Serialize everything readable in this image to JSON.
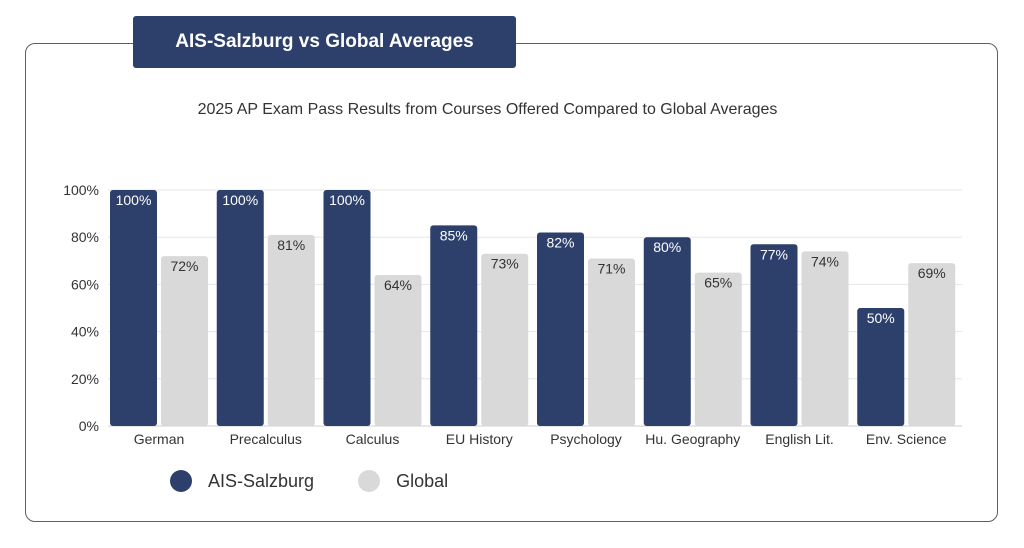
{
  "header": {
    "label": "AIS-Salzburg vs Global Averages"
  },
  "chart_data": {
    "type": "bar",
    "title": "2025 AP Exam Pass Results from Courses Offered Compared to Global Averages",
    "categories": [
      "German",
      "Precalculus",
      "Calculus",
      "EU History",
      "Psychology",
      "Hu. Geography",
      "English Lit.",
      "Env. Science"
    ],
    "series": [
      {
        "name": "AIS-Salzburg",
        "color": "#2d3f6b",
        "values": [
          100,
          100,
          100,
          85,
          82,
          80,
          77,
          50
        ],
        "labels": [
          "100%",
          "100%",
          "100%",
          "85%",
          "82%",
          "80%",
          "77%",
          "50%"
        ]
      },
      {
        "name": "Global",
        "color": "#d9d9d9",
        "values": [
          72,
          81,
          64,
          73,
          71,
          65,
          74,
          69
        ],
        "labels": [
          "72%",
          "81%",
          "64%",
          "73%",
          "71%",
          "65%",
          "74%",
          "69%"
        ]
      }
    ],
    "ylim": [
      0,
      100
    ],
    "yticks": [
      "0%",
      "20%",
      "40%",
      "60%",
      "80%",
      "100%"
    ],
    "grid": true,
    "legend_position": "bottom-left"
  }
}
